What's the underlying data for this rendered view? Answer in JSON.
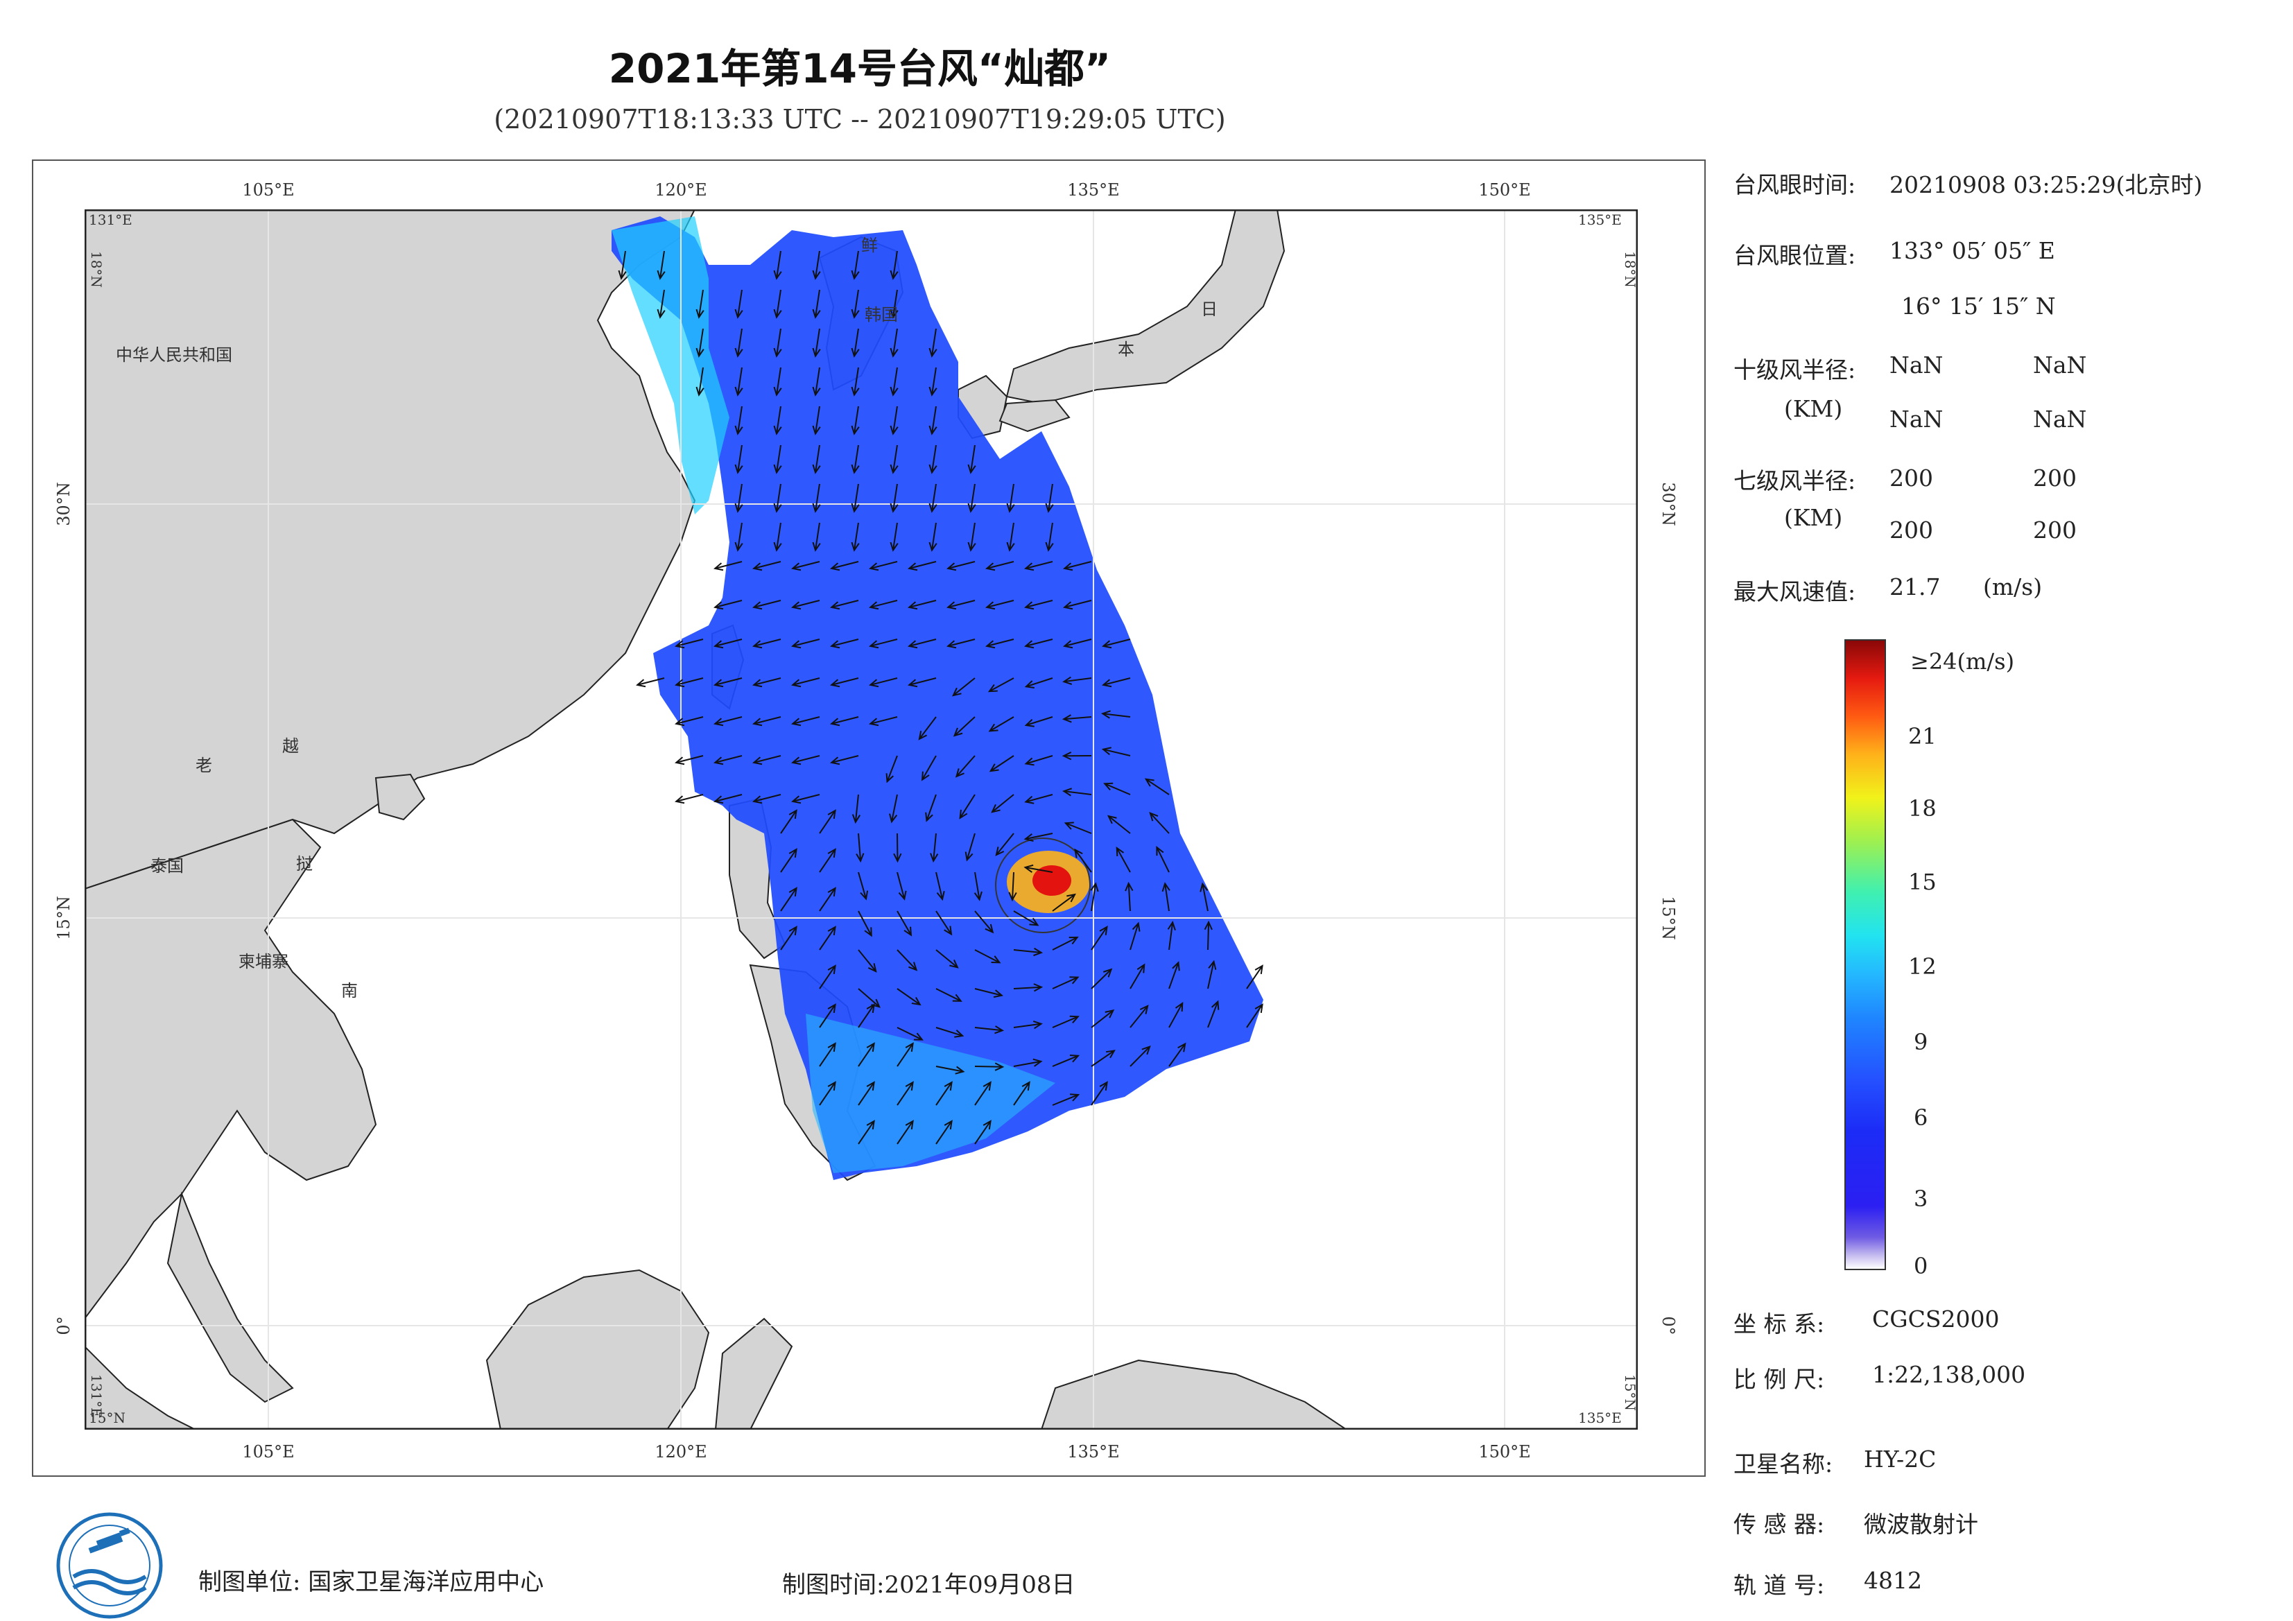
{
  "title": "2021年第14号台风“灿都”",
  "subtitle": "(20210907T18:13:33 UTC -- 20210907T19:29:05 UTC)",
  "map": {
    "lon_ticks": [
      "105°E",
      "120°E",
      "135°E",
      "150°E"
    ],
    "lat_ticks": [
      "30°N",
      "15°N",
      "0°"
    ],
    "corner_labels": {
      "top_left": "131°E",
      "top_right": "135°E",
      "bottom_left": "15°N",
      "bottom_right": "135°E",
      "side_left_top": "18°N",
      "side_right_top": "18°N",
      "side_left_bottom": "131°E",
      "side_right_bottom": "15°N"
    },
    "country_labels": [
      "中华人民共和国",
      "老",
      "越",
      "泰国",
      "挝",
      "柬埔寨",
      "南",
      "鲜",
      "韩国",
      "日",
      "本"
    ]
  },
  "info": {
    "eye_time_label": "台风眼时间:",
    "eye_time_value": "20210908 03:25:29(北京时)",
    "eye_pos_label": "台风眼位置:",
    "eye_pos_lon": "133° 05′ 05″ E",
    "eye_pos_lat": "16° 15′ 15″ N",
    "r10_label": "十级风半径:",
    "r10_unit": "(KM)",
    "r10_values": [
      "NaN",
      "NaN",
      "NaN",
      "NaN"
    ],
    "r7_label": "七级风半径:",
    "r7_unit": "(KM)",
    "r7_values": [
      "200",
      "200",
      "200",
      "200"
    ],
    "max_wind_label": "最大风速值:",
    "max_wind_value": "21.7",
    "max_wind_unit": "(m/s)"
  },
  "colorbar": {
    "top_label": "≥24(m/s)",
    "ticks": [
      "21",
      "18",
      "15",
      "12",
      "9",
      "6",
      "3",
      "0"
    ]
  },
  "meta": {
    "crs_label": "坐 标 系:",
    "crs_value": "CGCS2000",
    "scale_label": "比 例 尺:",
    "scale_value": "1:22,138,000",
    "sat_label": "卫星名称:",
    "sat_value": "HY-2C",
    "sensor_label": "传 感 器:",
    "sensor_value": "微波散射计",
    "orbit_label": "轨 道 号:",
    "orbit_value": "4812"
  },
  "footer": {
    "unit": "制图单位: 国家卫星海洋应用中心",
    "date": "制图时间:2021年09月08日"
  }
}
